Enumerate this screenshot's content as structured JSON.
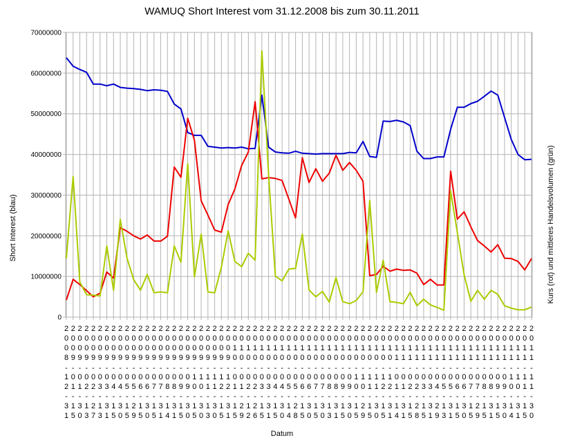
{
  "chart_data": {
    "type": "line",
    "title": "WAMUQ Short Interest vom 31.12.2008 bis zum 30.11.2011",
    "xlabel": "Datum",
    "ylabel": "Short Interest (blau)",
    "ylabel_right": "Kurs (rot) und mittleres Handelsvolumen (grün)",
    "ylim": [
      0,
      70000000
    ],
    "yticks": [
      "0",
      "10000000",
      "20000000",
      "30000000",
      "40000000",
      "50000000",
      "60000000",
      "70000000"
    ],
    "grid": true,
    "legend": "none",
    "categories": [
      "2008-12-31",
      "2009-01-15",
      "2009-01-30",
      "2009-02-13",
      "2009-02-27",
      "2009-03-13",
      "2009-03-31",
      "2009-04-15",
      "2009-04-30",
      "2009-05-15",
      "2009-05-29",
      "2009-06-15",
      "2009-06-30",
      "2009-07-15",
      "2009-07-31",
      "2009-08-14",
      "2009-08-31",
      "2009-09-15",
      "2009-09-30",
      "2009-10-15",
      "2009-10-30",
      "2009-11-13",
      "2009-11-30",
      "2009-12-15",
      "2009-12-31",
      "2010-01-15",
      "2010-01-29",
      "2010-02-12",
      "2010-02-26",
      "2010-03-15",
      "2010-03-31",
      "2010-04-15",
      "2010-04-30",
      "2010-05-14",
      "2010-05-28",
      "2010-06-15",
      "2010-06-30",
      "2010-07-15",
      "2010-07-30",
      "2010-08-13",
      "2010-08-31",
      "2010-09-15",
      "2010-09-30",
      "2010-10-15",
      "2010-10-29",
      "2010-11-15",
      "2010-11-30",
      "2010-12-15",
      "2010-12-31",
      "2011-01-14",
      "2011-01-31",
      "2011-02-15",
      "2011-02-28",
      "2011-03-15",
      "2011-03-31",
      "2011-04-29",
      "2011-05-13",
      "2011-05-31",
      "2011-06-15",
      "2011-06-30",
      "2011-07-15",
      "2011-07-29",
      "2011-08-15",
      "2011-08-31",
      "2011-09-15",
      "2011-09-30",
      "2011-10-14",
      "2011-10-31",
      "2011-11-15",
      "2011-11-30"
    ],
    "series": [
      {
        "color": "#0000cc",
        "values": [
          63800000,
          61700000,
          60900000,
          60200000,
          57300000,
          57300000,
          56900000,
          57300000,
          56500000,
          56300000,
          56200000,
          56000000,
          55700000,
          55900000,
          55800000,
          55500000,
          52400000,
          51200000,
          45400000,
          44700000,
          44700000,
          42000000,
          41800000,
          41600000,
          41700000,
          41600000,
          41800000,
          41400000,
          41500000,
          54600000,
          41800000,
          40600000,
          40400000,
          40300000,
          40800000,
          40300000,
          40200000,
          40100000,
          40200000,
          40200000,
          40200000,
          40200000,
          40500000,
          40400000,
          43200000,
          39500000,
          39300000,
          48200000,
          48100000,
          48400000,
          48000000,
          47100000,
          40800000,
          39000000,
          39000000,
          39400000,
          39400000,
          46200000,
          51600000,
          51600000,
          52500000,
          53100000,
          54300000,
          55600000,
          54600000,
          49100000,
          43700000,
          40000000,
          38700000,
          38800000
        ]
      },
      {
        "color": "#ee0000",
        "values": [
          4200000,
          9300000,
          8000000,
          6500000,
          5000000,
          5900000,
          11100000,
          9600000,
          22000000,
          21100000,
          20000000,
          19200000,
          20200000,
          18700000,
          18700000,
          19900000,
          36900000,
          34400000,
          48900000,
          43500000,
          28600000,
          25100000,
          21400000,
          20900000,
          27700000,
          31500000,
          37300000,
          40600000,
          53000000,
          34000000,
          34300000,
          34100000,
          33600000,
          29000000,
          24400000,
          39200000,
          33100000,
          36500000,
          33400000,
          35400000,
          39800000,
          36100000,
          38000000,
          36100000,
          33400000,
          10200000,
          10500000,
          12500000,
          11300000,
          11800000,
          11500000,
          11600000,
          10800000,
          8000000,
          9300000,
          7900000,
          7900000,
          35900000,
          24100000,
          25900000,
          22200000,
          18800000,
          17500000,
          16000000,
          17800000,
          14500000,
          14400000,
          13700000,
          11600000,
          14400000
        ]
      },
      {
        "color": "#aacc00",
        "values": [
          14500000,
          34600000,
          8600000,
          5500000,
          5400000,
          5200000,
          17500000,
          6600000,
          24000000,
          14500000,
          9200000,
          6600000,
          10500000,
          6000000,
          6200000,
          6000000,
          17500000,
          13500000,
          37700000,
          9900000,
          20400000,
          6200000,
          6000000,
          12300000,
          21200000,
          13700000,
          12400000,
          15700000,
          14000000,
          65500000,
          35000000,
          10100000,
          8900000,
          11800000,
          12000000,
          20400000,
          6700000,
          5000000,
          6300000,
          3700000,
          9700000,
          3800000,
          3300000,
          4100000,
          6200000,
          28700000,
          6100000,
          14000000,
          3800000,
          3600000,
          3300000,
          6100000,
          2800000,
          4400000,
          3000000,
          2400000,
          1700000,
          31000000,
          20800000,
          10400000,
          3900000,
          6600000,
          4400000,
          6600000,
          5600000,
          2800000,
          2200000,
          1800000,
          1800000,
          2500000
        ]
      }
    ]
  }
}
